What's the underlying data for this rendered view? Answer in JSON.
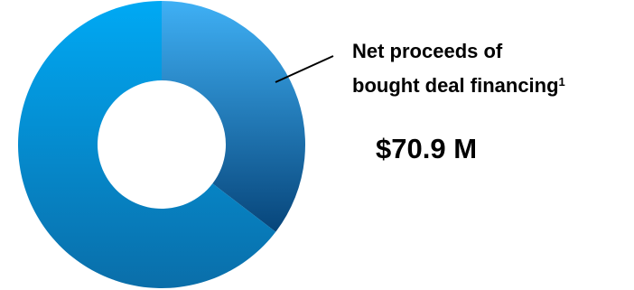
{
  "chart_data": {
    "type": "pie",
    "donut": true,
    "segments": [
      {
        "index": 0,
        "value": 35.4,
        "color_top": "#3fb0f5",
        "color_bottom": "#07457a"
      },
      {
        "index": 1,
        "value": 64.6,
        "color_top": "#00a9f4",
        "color_bottom": "#0a6ea9"
      }
    ],
    "annotation": {
      "line1": "Net proceeds of",
      "line2": "bought deal financing",
      "footnote_mark": "1",
      "value": "$70.9 M"
    }
  }
}
